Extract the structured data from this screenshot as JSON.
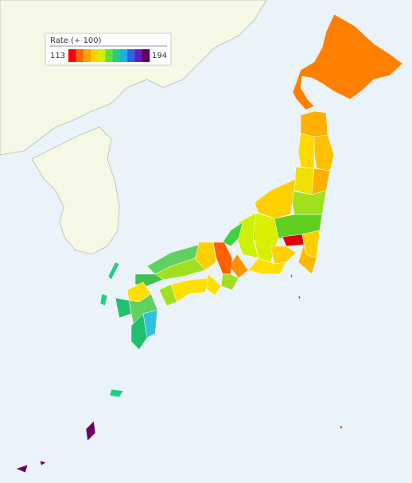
{
  "legend": {
    "title": "Rate (÷ 100)",
    "min": 113,
    "max": 194,
    "colors": [
      "#ff0000",
      "#ff6000",
      "#ffa000",
      "#ffd000",
      "#d0f000",
      "#60e040",
      "#20d080",
      "#20b0e0",
      "#3060e0",
      "#6020c0",
      "#600060"
    ]
  }
}
